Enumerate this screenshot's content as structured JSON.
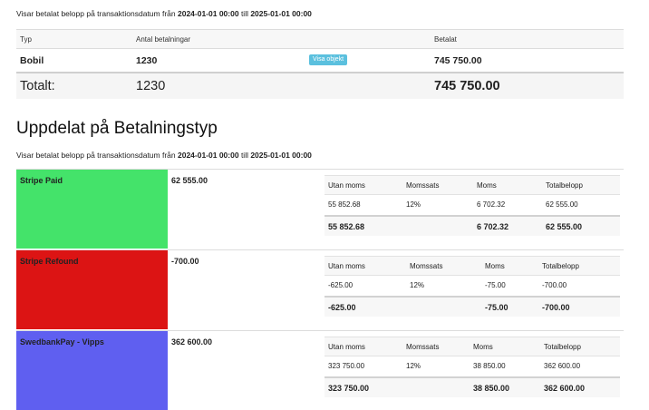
{
  "summary": {
    "caption": {
      "prefix": "Visar betalat belopp på transaktionsdatum från ",
      "from": "2024-01-01 00:00",
      "mid": " till ",
      "to": "2025-01-01 00:00"
    },
    "columns": {
      "type": "Typ",
      "count": "Antal betalningar",
      "paid": "Betalat"
    },
    "row": {
      "type": "Bobil",
      "count": "1230",
      "button": "Visa objekt",
      "paid": "745 750.00"
    },
    "total": {
      "label": "Totalt:",
      "count": "1230",
      "paid": "745 750.00"
    }
  },
  "breakdown": {
    "heading": "Uppdelat på Betalningstyp",
    "caption": {
      "prefix": "Visar betalat belopp på transaktionsdatum från ",
      "from": "2024-01-01 00:00",
      "mid": " till ",
      "to": "2025-01-01 00:00"
    },
    "tax_columns": {
      "ex_vat": "Utan moms",
      "rate": "Momssats",
      "vat": "Moms",
      "total": "Totalbelopp"
    },
    "types": [
      {
        "name": "Stripe Paid",
        "color": "#44e36a",
        "amount": "62 555.00",
        "row": {
          "ex_vat": "55 852.68",
          "rate": "12%",
          "vat": "6 702.32",
          "total": "62 555.00"
        },
        "sum": {
          "ex_vat": "55 852.68",
          "vat": "6 702.32",
          "total": "62 555.00"
        }
      },
      {
        "name": "Stripe Refound",
        "color": "#dc1414",
        "amount": "-700.00",
        "row": {
          "ex_vat": "-625.00",
          "rate": "12%",
          "vat": "-75.00",
          "total": "-700.00"
        },
        "sum": {
          "ex_vat": "-625.00",
          "vat": "-75.00",
          "total": "-700.00"
        }
      },
      {
        "name": "SwedbankPay - Vipps",
        "color": "#5f5ff0",
        "amount": "362 600.00",
        "row": {
          "ex_vat": "323 750.00",
          "rate": "12%",
          "vat": "38 850.00",
          "total": "362 600.00"
        },
        "sum": {
          "ex_vat": "323 750.00",
          "vat": "38 850.00",
          "total": "362 600.00"
        }
      }
    ]
  }
}
